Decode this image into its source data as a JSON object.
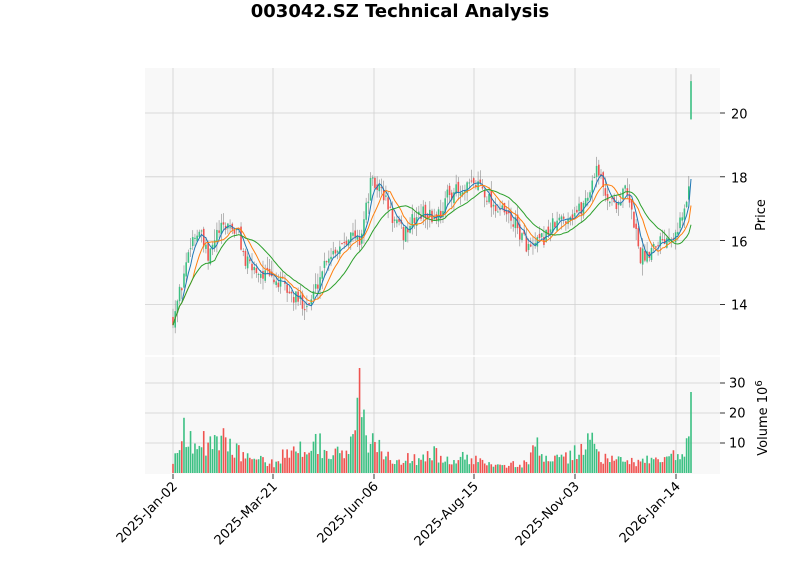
{
  "chart_data": {
    "type": "candlestick",
    "title": "003042.SZ Technical Analysis",
    "price_panel": {
      "ylabel": "Price",
      "ylim": [
        12.5,
        21.5
      ],
      "yticks": [
        "14",
        "16",
        "18",
        "20"
      ],
      "grid": true
    },
    "volume_panel": {
      "ylabel": "Volume  10",
      "ylabel_exponent": "6",
      "ylim": [
        0,
        35
      ],
      "yticks": [
        "10",
        "20",
        "30"
      ],
      "grid": true
    },
    "x_ticks": [
      "2025-Jan-02",
      "2025-Mar-21",
      "2025-Jun-06",
      "2025-Aug-15",
      "2025-Nov-03",
      "2026-Jan-14"
    ],
    "colors": {
      "up": "#3cc083",
      "down": "#ef5350",
      "ma_short": "#1f77b4",
      "ma_mid": "#ff7f0e",
      "ma_long": "#2ca02c",
      "panel_bg": "#f8f8f8",
      "grid": "#d0d0d0"
    },
    "moving_averages": [
      "short",
      "mid",
      "long"
    ],
    "price_anchors": [
      [
        0,
        13.6
      ],
      [
        4,
        14.6
      ],
      [
        8,
        16.0
      ],
      [
        12,
        16.3
      ],
      [
        16,
        15.4
      ],
      [
        20,
        16.2
      ],
      [
        25,
        16.5
      ],
      [
        30,
        16.2
      ],
      [
        33,
        15.3
      ],
      [
        40,
        15.0
      ],
      [
        50,
        14.6
      ],
      [
        55,
        14.2
      ],
      [
        62,
        14.0
      ],
      [
        65,
        14.5
      ],
      [
        70,
        15.5
      ],
      [
        75,
        15.8
      ],
      [
        80,
        16.2
      ],
      [
        85,
        16.0
      ],
      [
        88,
        17.0
      ],
      [
        90,
        17.8
      ],
      [
        95,
        17.6
      ],
      [
        100,
        16.7
      ],
      [
        105,
        16.2
      ],
      [
        110,
        16.7
      ],
      [
        115,
        16.9
      ],
      [
        118,
        16.7
      ],
      [
        122,
        16.9
      ],
      [
        125,
        17.4
      ],
      [
        128,
        17.6
      ],
      [
        132,
        17.4
      ],
      [
        135,
        17.7
      ],
      [
        140,
        17.8
      ],
      [
        145,
        17.2
      ],
      [
        150,
        16.9
      ],
      [
        155,
        16.6
      ],
      [
        160,
        16.0
      ],
      [
        163,
        15.7
      ],
      [
        168,
        16.0
      ],
      [
        172,
        16.4
      ],
      [
        176,
        16.6
      ],
      [
        180,
        16.8
      ],
      [
        186,
        17.0
      ],
      [
        190,
        17.6
      ],
      [
        193,
        18.4
      ],
      [
        196,
        17.6
      ],
      [
        200,
        17.2
      ],
      [
        203,
        17.2
      ],
      [
        206,
        17.6
      ],
      [
        210,
        16.6
      ],
      [
        213,
        15.5
      ],
      [
        216,
        15.6
      ],
      [
        220,
        16.0
      ],
      [
        224,
        16.1
      ],
      [
        228,
        16.3
      ],
      [
        232,
        16.7
      ],
      [
        234,
        17.2
      ],
      [
        236,
        18.2
      ]
    ],
    "volume_anchors": [
      [
        0,
        4
      ],
      [
        3,
        8
      ],
      [
        5,
        16
      ],
      [
        8,
        12
      ],
      [
        12,
        9
      ],
      [
        16,
        11
      ],
      [
        19,
        10
      ],
      [
        22,
        11
      ],
      [
        26,
        9
      ],
      [
        30,
        8
      ],
      [
        33,
        5
      ],
      [
        40,
        4
      ],
      [
        46,
        3
      ],
      [
        50,
        6
      ],
      [
        55,
        10
      ],
      [
        58,
        8
      ],
      [
        62,
        9
      ],
      [
        65,
        12
      ],
      [
        68,
        9
      ],
      [
        72,
        7
      ],
      [
        77,
        6
      ],
      [
        80,
        8
      ],
      [
        82,
        12
      ],
      [
        84,
        19
      ],
      [
        86,
        16
      ],
      [
        88,
        14
      ],
      [
        90,
        10
      ],
      [
        93,
        9
      ],
      [
        96,
        6
      ],
      [
        102,
        5
      ],
      [
        108,
        5
      ],
      [
        112,
        4
      ],
      [
        116,
        7
      ],
      [
        120,
        6
      ],
      [
        124,
        4
      ],
      [
        128,
        4
      ],
      [
        132,
        5
      ],
      [
        136,
        4
      ],
      [
        140,
        4
      ],
      [
        145,
        4
      ],
      [
        150,
        3
      ],
      [
        155,
        3
      ],
      [
        160,
        3
      ],
      [
        163,
        5
      ],
      [
        165,
        9
      ],
      [
        168,
        7
      ],
      [
        172,
        5
      ],
      [
        176,
        4
      ],
      [
        180,
        5
      ],
      [
        184,
        7
      ],
      [
        187,
        8
      ],
      [
        190,
        12
      ],
      [
        192,
        9
      ],
      [
        195,
        6
      ],
      [
        198,
        4
      ],
      [
        203,
        4
      ],
      [
        210,
        4
      ],
      [
        215,
        4
      ],
      [
        220,
        4
      ],
      [
        225,
        5
      ],
      [
        230,
        6
      ],
      [
        233,
        5
      ],
      [
        234,
        8
      ],
      [
        235,
        15
      ],
      [
        236,
        27
      ]
    ]
  }
}
